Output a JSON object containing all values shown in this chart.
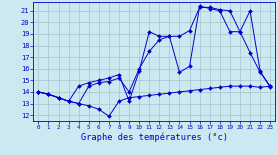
{
  "title": "Graphe des températures (°c)",
  "bg_color": "#cce8f0",
  "grid_color": "#aac0cc",
  "line_color": "#0000cc",
  "xlim": [
    -0.5,
    23.5
  ],
  "ylim": [
    11.5,
    21.8
  ],
  "yticks": [
    12,
    13,
    14,
    15,
    16,
    17,
    18,
    19,
    20,
    21
  ],
  "xticks": [
    0,
    1,
    2,
    3,
    4,
    5,
    6,
    7,
    8,
    9,
    10,
    11,
    12,
    13,
    14,
    15,
    16,
    17,
    18,
    19,
    20,
    21,
    22,
    23
  ],
  "line1_x": [
    0,
    1,
    2,
    3,
    4,
    5,
    6,
    7,
    8,
    9,
    10,
    11,
    12,
    13,
    14,
    15,
    16,
    17,
    18,
    19,
    20,
    21,
    22,
    23
  ],
  "line1_y": [
    14.0,
    13.8,
    13.5,
    13.2,
    13.0,
    12.8,
    12.5,
    11.9,
    13.2,
    13.5,
    13.6,
    13.7,
    13.8,
    13.9,
    14.0,
    14.1,
    14.2,
    14.3,
    14.4,
    14.5,
    14.5,
    14.5,
    14.4,
    14.5
  ],
  "line2_x": [
    0,
    1,
    2,
    3,
    4,
    5,
    6,
    7,
    8,
    9,
    10,
    11,
    12,
    13,
    14,
    15,
    16,
    17,
    18,
    19,
    20,
    21,
    22,
    23
  ],
  "line2_y": [
    14.0,
    13.8,
    13.5,
    13.2,
    14.5,
    14.8,
    15.0,
    15.2,
    15.5,
    13.2,
    15.8,
    19.2,
    18.8,
    18.8,
    15.7,
    16.2,
    21.4,
    21.2,
    21.0,
    19.2,
    19.2,
    21.0,
    15.8,
    14.4
  ],
  "line3_x": [
    0,
    1,
    2,
    3,
    4,
    5,
    6,
    7,
    8,
    9,
    10,
    11,
    12,
    13,
    14,
    15,
    16,
    17,
    18,
    19,
    20,
    21,
    22,
    23
  ],
  "line3_y": [
    14.0,
    13.8,
    13.5,
    13.2,
    13.0,
    14.5,
    14.8,
    14.9,
    15.2,
    14.0,
    16.0,
    17.5,
    18.5,
    18.8,
    18.8,
    19.3,
    21.3,
    21.3,
    21.1,
    21.0,
    19.2,
    17.4,
    15.7,
    14.5
  ]
}
